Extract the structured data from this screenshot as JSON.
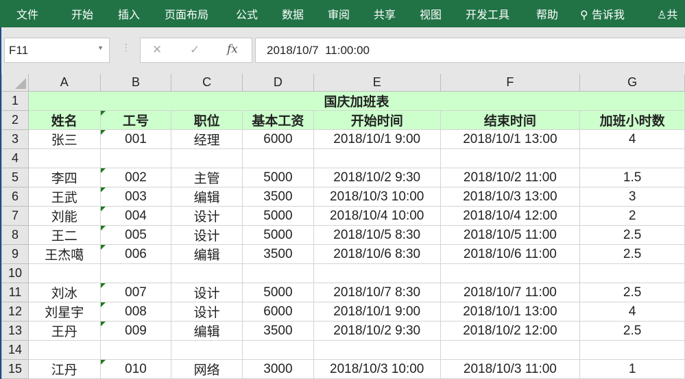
{
  "ribbon": {
    "tabs": [
      "文件",
      "开始",
      "插入",
      "页面布局",
      "公式",
      "数据",
      "审阅",
      "共享",
      "视图",
      "开发工具",
      "帮助"
    ],
    "tell_me": "告诉我",
    "share": "共"
  },
  "formula_bar": {
    "name_box": "F11",
    "cancel": "✕",
    "enter": "✓",
    "fx": "fx",
    "value": "2018/10/7  11:00:00"
  },
  "columns": [
    "A",
    "B",
    "C",
    "D",
    "E",
    "F",
    "G"
  ],
  "title": "国庆加班表",
  "headers": [
    "姓名",
    "工号",
    "职位",
    "基本工资",
    "开始时间",
    "结束时间",
    "加班小时数"
  ],
  "rows": [
    {
      "n": "3",
      "cells": [
        "张三",
        "001",
        "经理",
        "6000",
        "2018/10/1 9:00",
        "2018/10/1 13:00",
        "4"
      ]
    },
    {
      "n": "4",
      "cells": [
        "",
        "",
        "",
        "",
        "",
        "",
        ""
      ]
    },
    {
      "n": "5",
      "cells": [
        "李四",
        "002",
        "主管",
        "5000",
        "2018/10/2 9:30",
        "2018/10/2 11:00",
        "1.5"
      ]
    },
    {
      "n": "6",
      "cells": [
        "王武",
        "003",
        "编辑",
        "3500",
        "2018/10/3 10:00",
        "2018/10/3 13:00",
        "3"
      ]
    },
    {
      "n": "7",
      "cells": [
        "刘能",
        "004",
        "设计",
        "5000",
        "2018/10/4 10:00",
        "2018/10/4 12:00",
        "2"
      ]
    },
    {
      "n": "8",
      "cells": [
        "王二",
        "005",
        "设计",
        "5000",
        "2018/10/5 8:30",
        "2018/10/5 11:00",
        "2.5"
      ]
    },
    {
      "n": "9",
      "cells": [
        "王杰噶",
        "006",
        "编辑",
        "3500",
        "2018/10/6 8:30",
        "2018/10/6 11:00",
        "2.5"
      ]
    },
    {
      "n": "10",
      "cells": [
        "",
        "",
        "",
        "",
        "",
        "",
        ""
      ]
    },
    {
      "n": "11",
      "cells": [
        "刘冰",
        "007",
        "设计",
        "5000",
        "2018/10/7 8:30",
        "2018/10/7 11:00",
        "2.5"
      ]
    },
    {
      "n": "12",
      "cells": [
        "刘星宇",
        "008",
        "设计",
        "6000",
        "2018/10/1 9:00",
        "2018/10/1 13:00",
        "4"
      ]
    },
    {
      "n": "13",
      "cells": [
        "王丹",
        "009",
        "编辑",
        "3500",
        "2018/10/2 9:30",
        "2018/10/2 12:00",
        "2.5"
      ]
    },
    {
      "n": "14",
      "cells": [
        "",
        "",
        "",
        "",
        "",
        "",
        ""
      ]
    },
    {
      "n": "15",
      "cells": [
        "江丹",
        "010",
        "网络",
        "3000",
        "2018/10/3 10:00",
        "2018/10/3 11:00",
        "1"
      ]
    }
  ]
}
